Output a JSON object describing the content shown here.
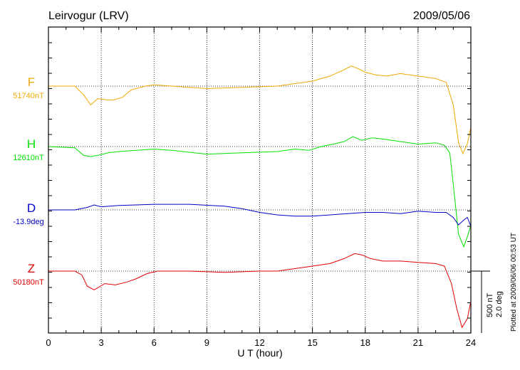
{
  "header": {
    "station": "Leirvogur (LRV)",
    "date": "2009/05/06"
  },
  "footer": {
    "plotted_note": "Plotted at 2009/06/06 00:53 UT"
  },
  "scale": {
    "nt": "500 nT",
    "deg": "2.0 deg"
  },
  "chart_data": {
    "type": "line",
    "title": "Leirvogur (LRV)",
    "date": "2009/05/06",
    "xlabel": "U T (hour)",
    "xlim": [
      0,
      24
    ],
    "xticks": [
      0,
      3,
      6,
      9,
      12,
      15,
      18,
      21,
      24
    ],
    "grid": true,
    "scale_bar": {
      "nT": 500,
      "deg": 2.0
    },
    "colors": {
      "F": "#f0a800",
      "H": "#00e000",
      "D": "#0000c8",
      "Z": "#e00000"
    },
    "series": [
      {
        "name": "F",
        "baseline": "51740nT",
        "x": [
          0,
          1.5,
          2.0,
          2.4,
          2.8,
          3.3,
          3.7,
          4.2,
          4.7,
          5.5,
          6.0,
          7,
          9,
          11,
          13,
          14,
          15,
          16,
          16.8,
          17.2,
          17.6,
          18.0,
          18.6,
          19.2,
          20,
          21,
          22,
          22.6,
          23.0,
          23.3,
          23.55,
          23.8,
          24.0
        ],
        "offset": [
          0,
          0,
          -70,
          -150,
          -100,
          -110,
          -110,
          -90,
          -30,
          0,
          10,
          0,
          -20,
          -10,
          0,
          20,
          40,
          80,
          130,
          160,
          140,
          110,
          90,
          80,
          100,
          80,
          60,
          30,
          -150,
          -450,
          -540,
          -460,
          -330
        ]
      },
      {
        "name": "H",
        "baseline": "12610nT",
        "x": [
          0,
          1.5,
          2.0,
          2.4,
          2.8,
          3.4,
          4.0,
          5.0,
          6.0,
          7,
          9,
          11,
          13,
          14,
          14.8,
          15.5,
          16.2,
          16.8,
          17.3,
          17.8,
          18.4,
          19,
          20,
          21,
          22,
          22.5,
          22.8,
          23.0,
          23.3,
          23.6,
          23.8,
          24.0
        ],
        "offset": [
          0,
          -10,
          -70,
          -80,
          -70,
          -50,
          -40,
          -30,
          -20,
          -30,
          -60,
          -50,
          -40,
          -20,
          -30,
          0,
          20,
          40,
          80,
          50,
          70,
          60,
          40,
          20,
          30,
          10,
          -50,
          -300,
          -700,
          -800,
          -720,
          -630
        ]
      },
      {
        "name": "D",
        "baseline": "-13.9deg",
        "x": [
          0,
          1.5,
          2.2,
          2.6,
          3.0,
          4.0,
          5,
          6,
          8,
          10,
          11,
          12,
          13,
          14,
          15,
          16,
          17,
          18,
          19,
          20,
          21,
          22,
          22.6,
          23.0,
          23.3,
          23.6,
          23.8,
          24.0
        ],
        "offset": [
          0,
          0,
          20,
          40,
          25,
          35,
          40,
          45,
          45,
          30,
          10,
          -20,
          -40,
          -50,
          -50,
          -40,
          -30,
          -20,
          -20,
          -30,
          -10,
          -20,
          -20,
          -60,
          -120,
          -80,
          -60,
          -130
        ]
      },
      {
        "name": "Z",
        "baseline": "50180nT",
        "x": [
          0,
          1.5,
          1.9,
          2.2,
          2.6,
          3.2,
          3.8,
          4.4,
          5.0,
          5.6,
          6.2,
          8,
          10,
          12,
          13,
          14,
          15,
          16,
          16.8,
          17.4,
          17.8,
          18.3,
          19,
          20,
          21,
          22,
          22.5,
          22.9,
          23.2,
          23.5,
          23.8,
          24.0
        ],
        "offset": [
          0,
          0,
          -30,
          -120,
          -150,
          -100,
          -110,
          -90,
          -60,
          -20,
          0,
          0,
          -10,
          0,
          0,
          20,
          40,
          60,
          100,
          140,
          130,
          100,
          80,
          80,
          70,
          60,
          40,
          -100,
          -300,
          -450,
          -380,
          -240
        ]
      }
    ]
  }
}
